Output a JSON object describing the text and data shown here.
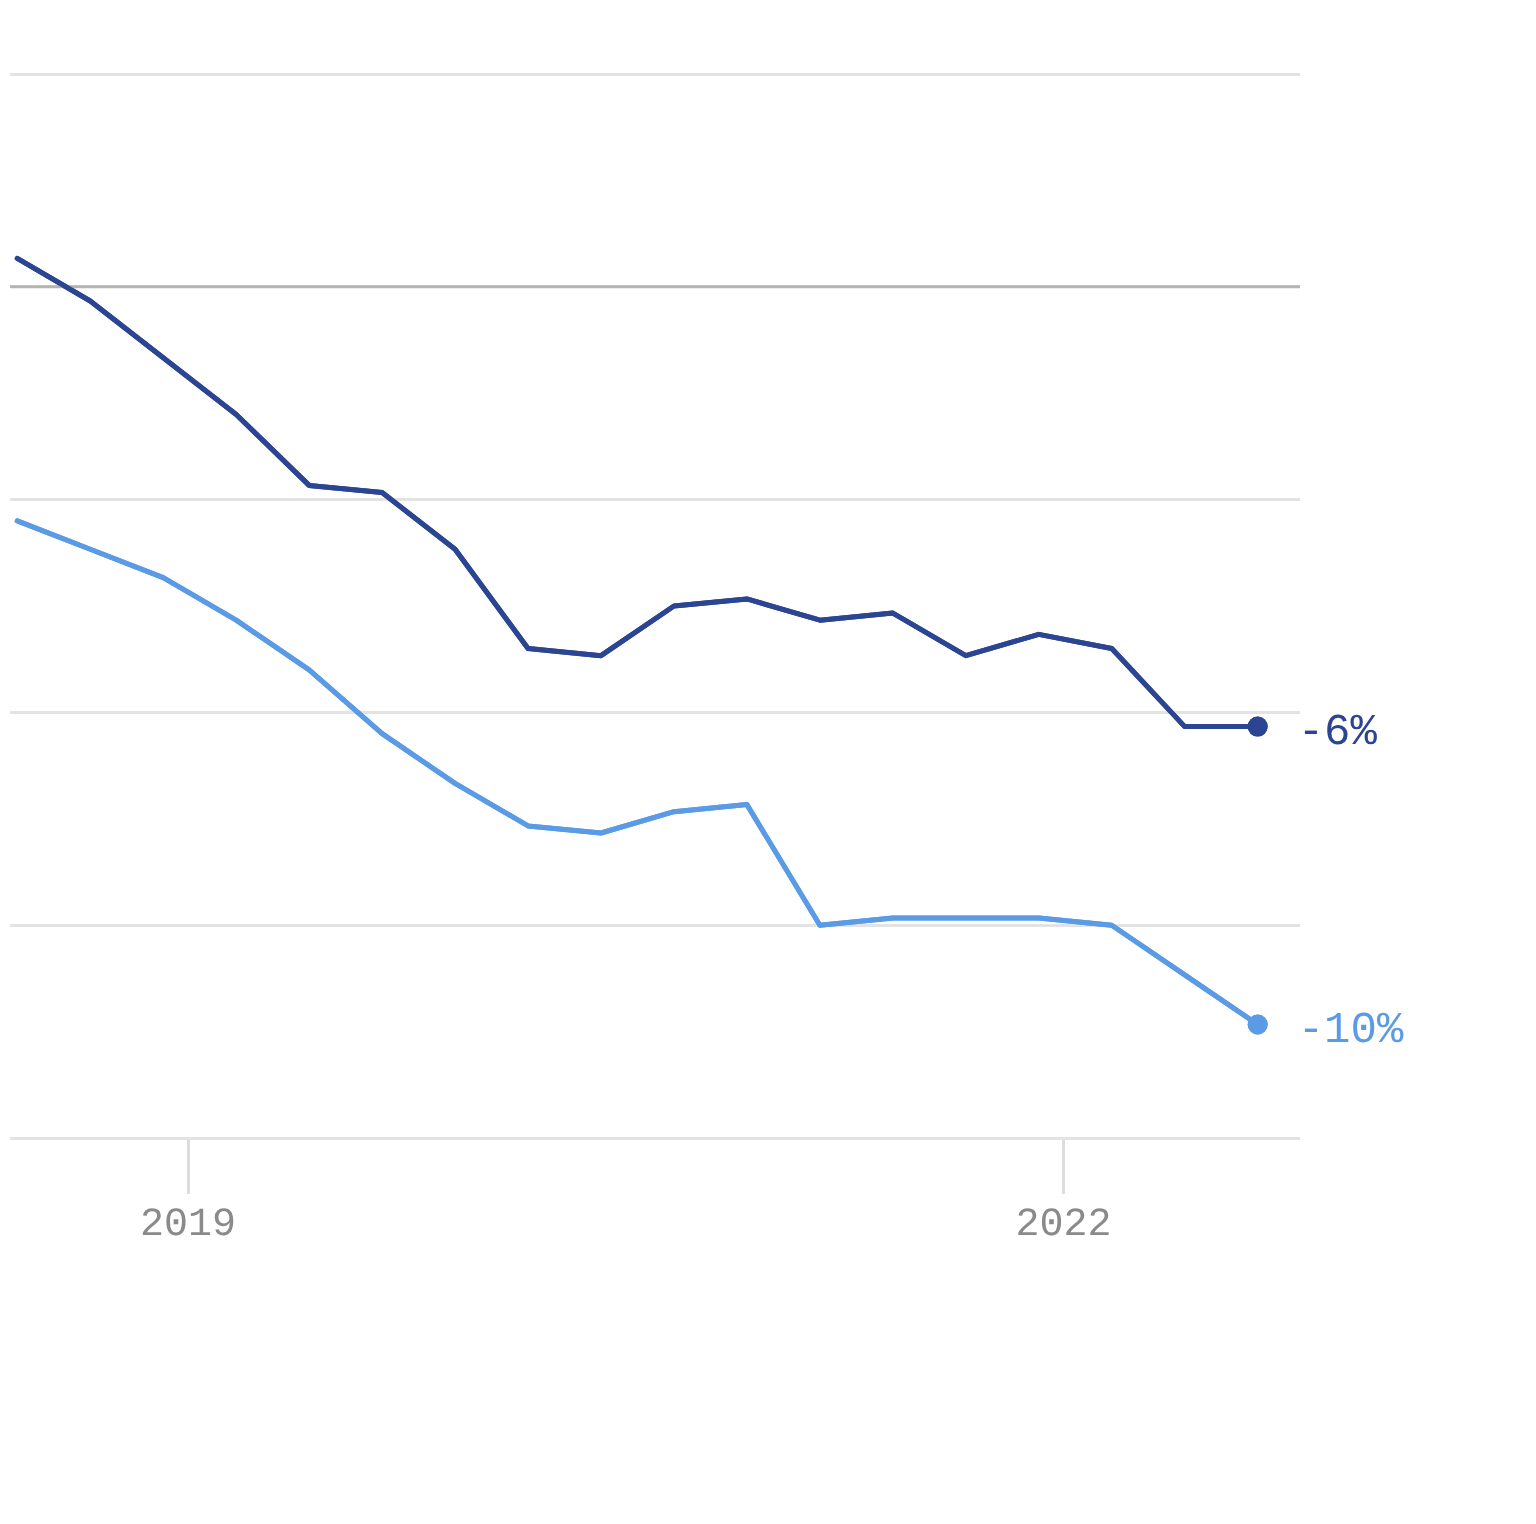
{
  "chart_data": {
    "type": "line",
    "x": [
      2018.415,
      2018.665,
      2018.915,
      2019.165,
      2019.415,
      2019.665,
      2019.915,
      2020.165,
      2020.415,
      2020.665,
      2020.915,
      2021.165,
      2021.415,
      2021.665,
      2021.915,
      2022.165,
      2022.415,
      2022.665
    ],
    "series": [
      {
        "color": "#2b4593",
        "values": [
          0.4,
          -0.2,
          -1.0,
          -1.8,
          -2.8,
          -2.9,
          -3.7,
          -5.1,
          -5.2,
          -4.5,
          -4.4,
          -4.7,
          -4.6,
          -5.2,
          -4.9,
          -5.1,
          -6.2,
          -6.2
        ],
        "value_labels": [
          null,
          null,
          null,
          null,
          null,
          null,
          null,
          null,
          null,
          null,
          null,
          null,
          null,
          null,
          null,
          null,
          null,
          "-6%"
        ]
      },
      {
        "color": "#5b9be6",
        "values": [
          -3.3,
          -3.7,
          -4.1,
          -4.7,
          -5.4,
          -6.3,
          -7.0,
          -7.6,
          -7.7,
          -7.4,
          -7.3,
          -9.0,
          -8.9,
          -8.9,
          -8.9,
          -9.0,
          -9.7,
          -10.4
        ],
        "value_labels": [
          null,
          null,
          null,
          null,
          null,
          null,
          null,
          null,
          null,
          null,
          null,
          null,
          null,
          null,
          null,
          null,
          null,
          "-10%"
        ]
      }
    ],
    "xlim": [
      2018.39,
      2022.81
    ],
    "xticks": [
      2019,
      2022
    ],
    "ylim": [
      -12,
      3
    ],
    "yticks": [
      {
        "value": 3,
        "label": null
      },
      {
        "value": 0,
        "label": null
      },
      {
        "value": -3,
        "label": null
      },
      {
        "value": -6,
        "label": null
      },
      {
        "value": -9,
        "label": null
      },
      {
        "value": -12,
        "label": null
      }
    ],
    "tick_labels": "x",
    "grid": "y",
    "ref_lines": [
      {
        "axis": "y",
        "value": 0,
        "color": "#b4b4b4"
      }
    ]
  }
}
